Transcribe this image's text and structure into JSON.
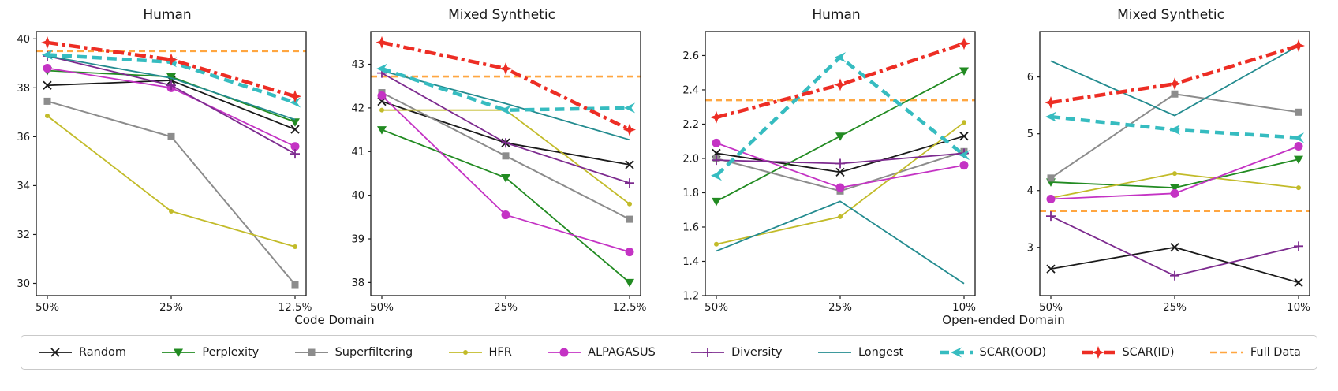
{
  "figure_title": "",
  "xlabels": {
    "left": "Code Domain",
    "right": "Open-ended Domain"
  },
  "legend": {
    "items": [
      {
        "label": "Random",
        "color": "#1a1a1a",
        "marker": "x",
        "line": "solid",
        "width": 1.8
      },
      {
        "label": "Perplexity",
        "color": "#228b22",
        "marker": "triangle-down",
        "line": "solid",
        "width": 1.8
      },
      {
        "label": "Superfiltering",
        "color": "#8c8c8c",
        "marker": "square",
        "line": "solid",
        "width": 2.0
      },
      {
        "label": "HFR",
        "color": "#c2bb29",
        "marker": "dot",
        "line": "solid",
        "width": 1.8
      },
      {
        "label": "ALPAGASUS",
        "color": "#c433c4",
        "marker": "circle",
        "line": "solid",
        "width": 1.8
      },
      {
        "label": "Diversity",
        "color": "#7d2b8f",
        "marker": "plus",
        "line": "solid",
        "width": 1.8
      },
      {
        "label": "Longest",
        "color": "#238b8f",
        "marker": "none",
        "line": "solid",
        "width": 1.8
      },
      {
        "label": "SCAR(OOD)",
        "color": "#36bcc0",
        "marker": "arrow-left",
        "line": "dashed",
        "width": 4.5
      },
      {
        "label": "SCAR(ID)",
        "color": "#ed2d24",
        "marker": "star4",
        "line": "dashdot",
        "width": 4.5
      },
      {
        "label": "Full Data",
        "color": "#ffa640",
        "marker": "none",
        "line": "dashed-thin",
        "width": 2.6
      }
    ]
  },
  "chart_data": [
    {
      "type": "line",
      "title": "Human",
      "domain": "Code Domain",
      "categories": [
        "50%",
        "25%",
        "12.5%"
      ],
      "ylim": [
        29.5,
        40.3
      ],
      "yticks": [
        30,
        32,
        34,
        36,
        38,
        40
      ],
      "ytick_labels": [
        "30",
        "32",
        "34",
        "36",
        "38",
        "40"
      ],
      "series": [
        {
          "name": "Full Data",
          "hline": 39.5
        },
        {
          "name": "Random",
          "values": [
            38.1,
            38.3,
            36.3
          ]
        },
        {
          "name": "Perplexity",
          "values": [
            38.7,
            38.45,
            36.6
          ]
        },
        {
          "name": "Superfiltering",
          "values": [
            37.45,
            36.0,
            29.95
          ]
        },
        {
          "name": "HFR",
          "values": [
            36.85,
            32.95,
            31.5
          ]
        },
        {
          "name": "ALPAGASUS",
          "values": [
            38.8,
            38.0,
            35.6
          ]
        },
        {
          "name": "Diversity",
          "values": [
            39.3,
            38.1,
            35.3
          ]
        },
        {
          "name": "Longest",
          "values": [
            39.3,
            38.4,
            36.7
          ]
        },
        {
          "name": "SCAR(OOD)",
          "values": [
            39.35,
            39.05,
            37.4
          ]
        },
        {
          "name": "SCAR(ID)",
          "values": [
            39.85,
            39.15,
            37.65
          ]
        }
      ]
    },
    {
      "type": "line",
      "title": "Mixed Synthetic",
      "domain": "Code Domain",
      "categories": [
        "50%",
        "25%",
        "12.5%"
      ],
      "ylim": [
        37.7,
        43.75
      ],
      "yticks": [
        38,
        39,
        40,
        41,
        42,
        43
      ],
      "ytick_labels": [
        "38",
        "39",
        "40",
        "41",
        "42",
        "43"
      ],
      "series": [
        {
          "name": "Full Data",
          "hline": 42.72
        },
        {
          "name": "Random",
          "values": [
            42.15,
            41.2,
            40.7
          ]
        },
        {
          "name": "Perplexity",
          "values": [
            41.5,
            40.4,
            38.0
          ]
        },
        {
          "name": "Superfiltering",
          "values": [
            42.35,
            40.9,
            39.45
          ]
        },
        {
          "name": "HFR",
          "values": [
            41.95,
            41.95,
            39.8
          ]
        },
        {
          "name": "ALPAGASUS",
          "values": [
            42.28,
            39.55,
            38.7
          ]
        },
        {
          "name": "Diversity",
          "values": [
            42.8,
            41.2,
            40.28
          ]
        },
        {
          "name": "Longest",
          "values": [
            42.85,
            42.1,
            41.27
          ]
        },
        {
          "name": "SCAR(OOD)",
          "values": [
            42.9,
            41.95,
            42.0
          ]
        },
        {
          "name": "SCAR(ID)",
          "values": [
            43.5,
            42.9,
            41.5
          ]
        }
      ]
    },
    {
      "type": "line",
      "title": "Human",
      "domain": "Open-ended Domain",
      "categories": [
        "50%",
        "25%",
        "10%"
      ],
      "ylim": [
        1.2,
        2.74
      ],
      "yticks": [
        1.2,
        1.4,
        1.6,
        1.8,
        2.0,
        2.2,
        2.4,
        2.6
      ],
      "ytick_labels": [
        "1.2",
        "1.4",
        "1.6",
        "1.8",
        "2.0",
        "2.2",
        "2.4",
        "2.6"
      ],
      "series": [
        {
          "name": "Full Data",
          "hline": 2.34
        },
        {
          "name": "Random",
          "values": [
            2.03,
            1.92,
            2.13
          ]
        },
        {
          "name": "Perplexity",
          "values": [
            1.75,
            2.13,
            2.51
          ]
        },
        {
          "name": "Superfiltering",
          "values": [
            2.0,
            1.81,
            2.04
          ]
        },
        {
          "name": "HFR",
          "values": [
            1.5,
            1.66,
            2.21
          ]
        },
        {
          "name": "ALPAGASUS",
          "values": [
            2.09,
            1.83,
            1.96
          ]
        },
        {
          "name": "Diversity",
          "values": [
            1.99,
            1.97,
            2.03
          ]
        },
        {
          "name": "Longest",
          "values": [
            1.46,
            1.75,
            1.27
          ]
        },
        {
          "name": "SCAR(OOD)",
          "values": [
            1.9,
            2.59,
            2.02
          ]
        },
        {
          "name": "SCAR(ID)",
          "values": [
            2.24,
            2.43,
            2.67
          ]
        }
      ]
    },
    {
      "type": "line",
      "title": "Mixed Synthetic",
      "domain": "Open-ended Domain",
      "categories": [
        "50%",
        "25%",
        "10%"
      ],
      "ylim": [
        2.15,
        6.8
      ],
      "yticks": [
        3,
        4,
        5,
        6
      ],
      "ytick_labels": [
        "3",
        "4",
        "5",
        "6"
      ],
      "series": [
        {
          "name": "Full Data",
          "hline": 3.64
        },
        {
          "name": "Random",
          "values": [
            2.62,
            3.0,
            2.38
          ]
        },
        {
          "name": "Perplexity",
          "values": [
            4.15,
            4.05,
            4.55
          ]
        },
        {
          "name": "Superfiltering",
          "values": [
            4.22,
            5.7,
            5.38
          ]
        },
        {
          "name": "HFR",
          "values": [
            3.87,
            4.3,
            4.05
          ]
        },
        {
          "name": "ALPAGASUS",
          "values": [
            3.85,
            3.95,
            4.78
          ]
        },
        {
          "name": "Diversity",
          "values": [
            3.55,
            2.5,
            3.02
          ]
        },
        {
          "name": "Longest",
          "values": [
            6.28,
            5.32,
            6.55
          ]
        },
        {
          "name": "SCAR(OOD)",
          "values": [
            5.3,
            5.07,
            4.93
          ]
        },
        {
          "name": "SCAR(ID)",
          "values": [
            5.55,
            5.88,
            6.55
          ]
        }
      ]
    }
  ]
}
